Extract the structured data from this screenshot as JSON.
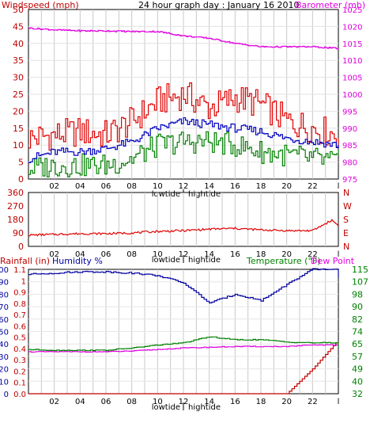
{
  "page_title": "24 hour graph day : January 16 2010",
  "colors": {
    "wind": "#e00000",
    "gust": "#e00000",
    "avg": "#0000c0",
    "low": "#008000",
    "baro": "#e000e0",
    "humidity": "#0000a0",
    "temp": "#008000",
    "dew": "#e000e0",
    "rain": "#c00000",
    "grid": "#c8c8c8",
    "axis_red": "#c00000",
    "axis_green": "#008000",
    "axis_magenta": "#e000e0",
    "axis_blue": "#0000a0"
  },
  "x_axis": {
    "tick_labels": [
      "02",
      "04",
      "06",
      "08",
      "10",
      "12",
      "14",
      "16",
      "18",
      "20",
      "22",
      "l"
    ],
    "tide_labels": [
      "lowtide",
      "hightide"
    ]
  },
  "chart_data": [
    {
      "type": "line",
      "panel": "wind-barometer",
      "title": "24 hour graph day : January 16 2010",
      "ylabel_left": "Windspeed (mph)",
      "ylabel_right": "Barometer (mb)",
      "ylim_left": [
        0,
        50
      ],
      "ylim_right": [
        975,
        1025
      ],
      "y_ticks_left": [
        "0",
        "5",
        "10",
        "15",
        "20",
        "25",
        "30",
        "35",
        "40",
        "45",
        "50"
      ],
      "y_ticks_right": [
        "975",
        "980",
        "985",
        "990",
        "995",
        "1000",
        "1005",
        "1010",
        "1015",
        "1020",
        "1025"
      ],
      "x": [
        0,
        2,
        4,
        6,
        8,
        10,
        12,
        14,
        16,
        18,
        20,
        22,
        24
      ],
      "grid": true,
      "series": [
        {
          "key": "gust",
          "axis": "left",
          "values": [
            12,
            13,
            14,
            13,
            17,
            23,
            25,
            21,
            24,
            22,
            17,
            15,
            13
          ]
        },
        {
          "key": "avg",
          "axis": "left",
          "values": [
            6,
            8,
            8,
            9,
            11,
            15,
            17,
            16,
            15,
            14,
            12,
            11,
            10
          ]
        },
        {
          "key": "low",
          "axis": "left",
          "values": [
            3,
            4,
            4,
            4,
            6,
            10,
            11,
            11,
            10,
            8,
            7,
            6,
            5
          ]
        },
        {
          "key": "baro",
          "axis": "right",
          "values": [
            1019.5,
            1019,
            1018.7,
            1018.7,
            1018.5,
            1018.5,
            1017.2,
            1016.5,
            1015,
            1014,
            1014,
            1014,
            1013.5
          ]
        }
      ]
    },
    {
      "type": "line",
      "panel": "wind-direction",
      "ylim": [
        0,
        360
      ],
      "y_ticks_left": [
        "0",
        "90",
        "180",
        "270",
        "360"
      ],
      "y_ticks_right": [
        "N",
        "W",
        "S",
        "E",
        "N"
      ],
      "x": [
        0,
        2,
        4,
        6,
        8,
        10,
        12,
        14,
        16,
        18,
        20,
        22,
        23.5,
        24
      ],
      "grid": true,
      "series": [
        {
          "key": "direction",
          "values": [
            75,
            80,
            85,
            85,
            90,
            100,
            105,
            115,
            120,
            110,
            105,
            105,
            175,
            140
          ]
        }
      ]
    },
    {
      "type": "line",
      "panel": "rain-humidity-temperature",
      "ylabel_rain": "Rainfall (in)",
      "ylabel_humidity": "Humidity %",
      "ylabel_temp": "Temperature (°F)",
      "ylabel_dew": "Dew Point",
      "ylim_humidity": [
        0,
        100
      ],
      "ylim_rain": [
        0,
        1.1
      ],
      "ylim_temp": [
        32,
        115
      ],
      "y_ticks_humidity": [
        "0",
        "10",
        "20",
        "30",
        "40",
        "50",
        "60",
        "70",
        "80",
        "90",
        "100"
      ],
      "y_ticks_rain": [
        "0.0",
        "0.1",
        "0.2",
        "0.3",
        "0.4",
        "0.5",
        "0.6",
        "0.7",
        "0.8",
        "0.9",
        "1",
        "1.1"
      ],
      "y_ticks_temp": [
        "32",
        "40",
        "49",
        "57",
        "65",
        "74",
        "82",
        "90",
        "98",
        "107",
        "115"
      ],
      "x": [
        0,
        2,
        4,
        6,
        8,
        10,
        12,
        14,
        16,
        18,
        20,
        22,
        23.8,
        24
      ],
      "grid": true,
      "series": [
        {
          "key": "humidity",
          "axis": "humidity",
          "values": [
            96,
            97,
            98,
            98,
            97,
            95,
            89,
            73,
            80,
            75,
            88,
            100,
            100,
            93
          ]
        },
        {
          "key": "temp",
          "axis": "temp",
          "values": [
            61.5,
            61,
            61,
            61,
            62.5,
            64.5,
            66,
            70,
            68,
            68,
            66.5,
            66,
            66,
            63
          ]
        },
        {
          "key": "dew",
          "axis": "temp",
          "values": [
            60,
            60,
            60,
            60,
            60.5,
            61.5,
            62.5,
            63,
            63.5,
            63.5,
            63.5,
            64.5,
            64.5,
            63
          ]
        },
        {
          "key": "rain",
          "axis": "rain",
          "values": [
            0,
            0,
            0,
            0,
            0,
            0,
            0,
            0,
            0,
            0,
            0,
            0.22,
            0.45,
            0.45
          ]
        }
      ]
    }
  ]
}
